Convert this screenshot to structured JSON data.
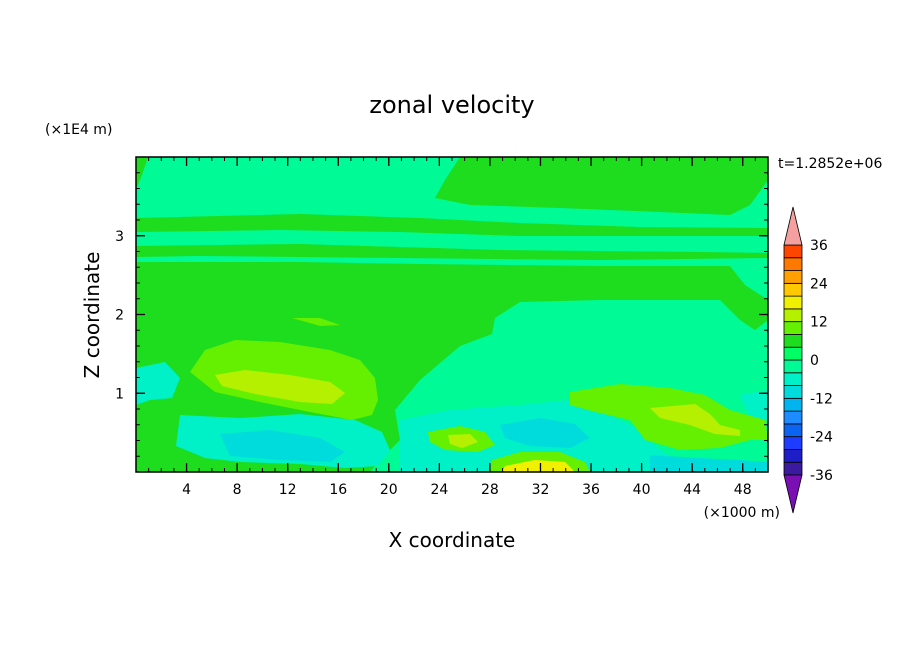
{
  "chart_data": {
    "type": "heatmap",
    "title": "zonal velocity",
    "xlabel": "X coordinate",
    "ylabel": "Z coordinate",
    "x_unit_label": "(×1000 m)",
    "y_unit_label": "(×1E4 m)",
    "time_label": "t=1.2852e+06",
    "xlim": [
      0,
      50
    ],
    "ylim": [
      0,
      4
    ],
    "x_ticks": [
      4,
      8,
      12,
      16,
      20,
      24,
      28,
      32,
      36,
      40,
      44,
      48
    ],
    "y_ticks": [
      1,
      2,
      3
    ],
    "colorbar": {
      "levels": [
        -40,
        -36,
        -32,
        -28,
        -24,
        -20,
        -16,
        -12,
        -8,
        -4,
        0,
        4,
        8,
        12,
        16,
        20,
        24,
        28,
        32,
        36,
        40
      ],
      "colors": [
        "#7a0fb4",
        "#3c1aa0",
        "#1e1ec8",
        "#1e3cff",
        "#0a64f0",
        "#1e8cff",
        "#00b4f0",
        "#00dcdc",
        "#00f0c8",
        "#00fa96",
        "#00ff64",
        "#1edc1e",
        "#64f000",
        "#b4f000",
        "#f0f000",
        "#ffc800",
        "#ffa000",
        "#ff7800",
        "#ff4600",
        "#f00000",
        "#f4a0a0"
      ],
      "tick_labels": [
        "36",
        "24",
        "12",
        "0",
        "-12",
        "-24",
        "-36"
      ],
      "tick_values": [
        36,
        24,
        12,
        0,
        -12,
        -24,
        -36
      ],
      "extend": "both"
    },
    "field_features": [
      {
        "x": [
          0,
          50
        ],
        "z": [
          0,
          4
        ],
        "value_range": [
          -4,
          0
        ],
        "kind": "background"
      },
      {
        "x": [
          0,
          50
        ],
        "z": [
          2.7,
          3.1
        ],
        "value_range": [
          0,
          4
        ],
        "kind": "band"
      },
      {
        "x": [
          0,
          50
        ],
        "z": [
          1.6,
          2.7
        ],
        "value_range": [
          0,
          4
        ],
        "kind": "band"
      },
      {
        "x": [
          9,
          15
        ],
        "z": [
          1.0,
          1.3
        ],
        "value_range": [
          8,
          12
        ],
        "kind": "max"
      },
      {
        "x": [
          43,
          47
        ],
        "z": [
          0.5,
          0.8
        ],
        "value_range": [
          8,
          12
        ],
        "kind": "max"
      },
      {
        "x": [
          30,
          34
        ],
        "z": [
          0,
          0.1
        ],
        "value_range": [
          12,
          16
        ],
        "kind": "max"
      },
      {
        "x": [
          30,
          35
        ],
        "z": [
          0.3,
          0.6
        ],
        "value_range": [
          -12,
          -8
        ],
        "kind": "min"
      },
      {
        "x": [
          12,
          18
        ],
        "z": [
          0.2,
          0.5
        ],
        "value_range": [
          -8,
          -4
        ],
        "kind": "min"
      }
    ]
  }
}
